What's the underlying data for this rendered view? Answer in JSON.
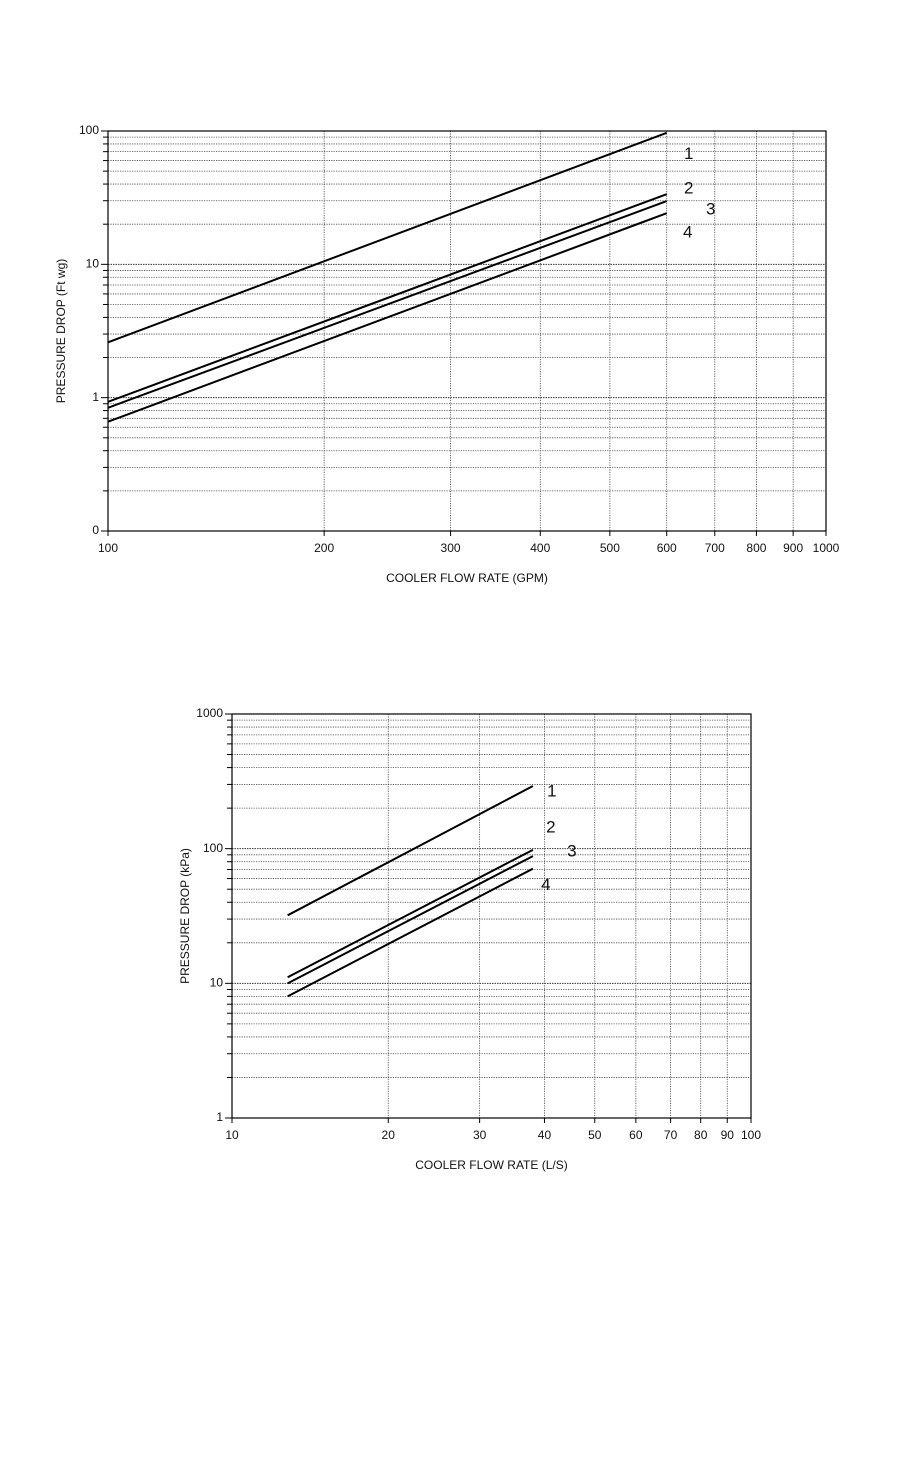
{
  "chart_data": [
    {
      "type": "line",
      "x_label": "COOLER FLOW RATE (GPM)",
      "y_label": "PRESSURE DROP (Ft wg)",
      "x_log": true,
      "y_log": true,
      "grid": true,
      "minor_grid": true,
      "xlim": [
        100,
        1000
      ],
      "ylim": [
        0.1,
        100
      ],
      "xticks": [
        100,
        200,
        300,
        400,
        500,
        600,
        700,
        800,
        900,
        1000
      ],
      "yticks": [
        {
          "value": 0.1,
          "label": "0"
        },
        1,
        10,
        100
      ],
      "x": [
        100,
        600
      ],
      "series": [
        {
          "name": "1",
          "color": "#000000",
          "values": [
            2.6,
            97
          ]
        },
        {
          "name": "2",
          "color": "#000000",
          "values": [
            0.93,
            33.6
          ]
        },
        {
          "name": "3",
          "color": "#000000",
          "values": [
            0.84,
            29.8
          ]
        },
        {
          "name": "4",
          "color": "#000000",
          "values": [
            0.66,
            24.2
          ]
        }
      ]
    },
    {
      "type": "line",
      "x_label": "COOLER FLOW RATE (L/S)",
      "y_label": "PRESSURE DROP (kPa)",
      "x_log": true,
      "y_log": true,
      "grid": true,
      "minor_grid": true,
      "xlim": [
        10,
        100
      ],
      "ylim": [
        1,
        1000
      ],
      "xticks": [
        10,
        20,
        30,
        40,
        50,
        60,
        70,
        80,
        90,
        100
      ],
      "yticks": [
        1,
        10,
        100,
        1000
      ],
      "x": [
        12.8,
        38
      ],
      "series": [
        {
          "name": "1",
          "color": "#000000",
          "values": [
            32,
            292
          ]
        },
        {
          "name": "2",
          "color": "#000000",
          "values": [
            11.1,
            98
          ]
        },
        {
          "name": "3",
          "color": "#000000",
          "values": [
            10,
            88
          ]
        },
        {
          "name": "4",
          "color": "#000000",
          "values": [
            8,
            71
          ]
        }
      ]
    }
  ]
}
